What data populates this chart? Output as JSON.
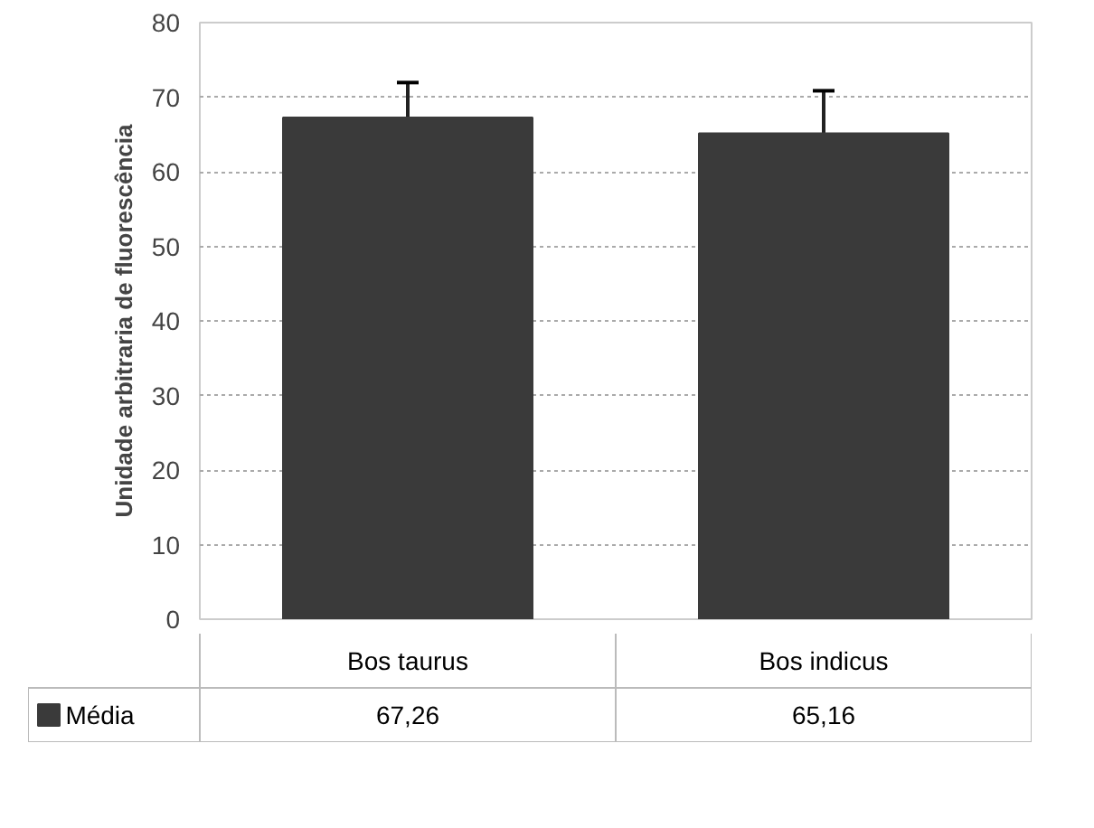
{
  "chart_data": {
    "type": "bar",
    "ylabel": "Unidade arbitraria de fluorescência",
    "categories": [
      "Bos taurus",
      "Bos indicus"
    ],
    "series": [
      {
        "name": "Média",
        "color": "#3a3a3a",
        "values": [
          67.26,
          65.16
        ],
        "value_labels": [
          "67,26",
          "65,16"
        ],
        "errors": [
          4.7,
          5.7
        ]
      }
    ],
    "ylim": [
      0,
      80
    ],
    "yticks": [
      0,
      10,
      20,
      30,
      40,
      50,
      60,
      70,
      80
    ],
    "grid": "y",
    "legend": "bottom"
  }
}
